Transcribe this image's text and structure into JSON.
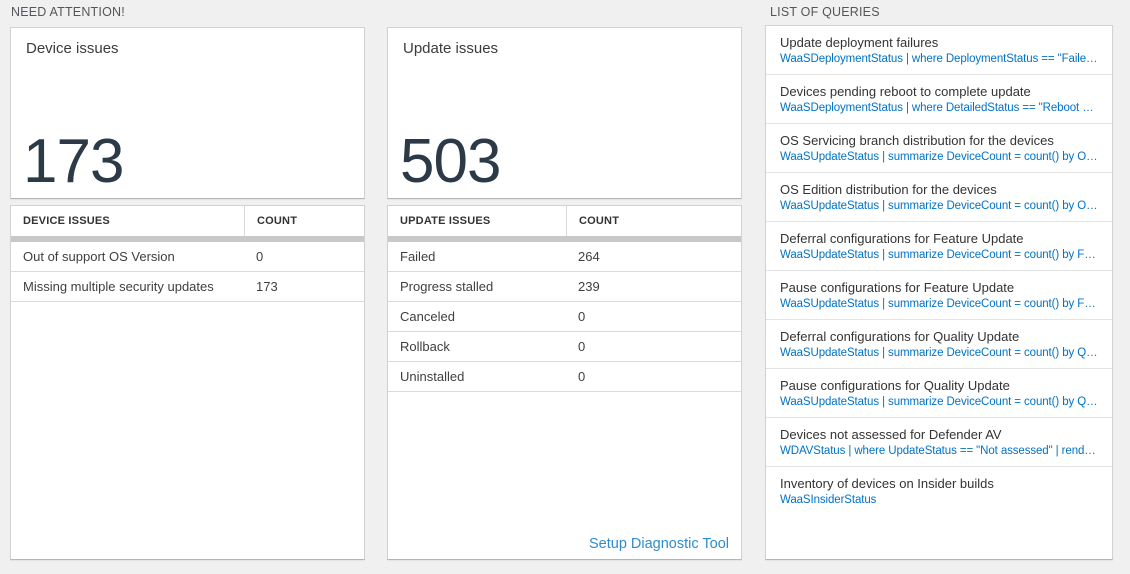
{
  "sections": {
    "need_attention_label": "NEED ATTENTION!",
    "list_of_queries_label": "LIST OF QUERIES"
  },
  "device_card": {
    "title": "Device issues",
    "big_number": "173",
    "table": {
      "headers": [
        "DEVICE ISSUES",
        "COUNT"
      ],
      "rows": [
        {
          "label": "Out of support OS Version",
          "count": "0"
        },
        {
          "label": "Missing multiple security updates",
          "count": "173"
        }
      ]
    }
  },
  "update_card": {
    "title": "Update issues",
    "big_number": "503",
    "table": {
      "headers": [
        "UPDATE ISSUES",
        "COUNT"
      ],
      "rows": [
        {
          "label": "Failed",
          "count": "264"
        },
        {
          "label": "Progress stalled",
          "count": "239"
        },
        {
          "label": "Canceled",
          "count": "0"
        },
        {
          "label": "Rollback",
          "count": "0"
        },
        {
          "label": "Uninstalled",
          "count": "0"
        }
      ]
    },
    "setup_link_label": "Setup Diagnostic Tool"
  },
  "queries": {
    "items": [
      {
        "title": "Update deployment failures",
        "query": "WaaSDeploymentStatus | where DeploymentStatus == \"Failed\" |..."
      },
      {
        "title": "Devices pending reboot to complete update",
        "query": "WaaSDeploymentStatus | where DetailedStatus == \"Reboot pend..."
      },
      {
        "title": "OS Servicing branch distribution for the devices",
        "query": "WaaSUpdateStatus | summarize DeviceCount = count() by OSSer..."
      },
      {
        "title": "OS Edition distribution for the devices",
        "query": "WaaSUpdateStatus | summarize DeviceCount = count() by OSEdit..."
      },
      {
        "title": "Deferral configurations for Feature Update",
        "query": "WaaSUpdateStatus | summarize DeviceCount = count() by Featur..."
      },
      {
        "title": "Pause configurations for Feature Update",
        "query": "WaaSUpdateStatus | summarize DeviceCount = count() by Featur..."
      },
      {
        "title": "Deferral configurations for Quality Update",
        "query": "WaaSUpdateStatus | summarize DeviceCount = count() by Qualit..."
      },
      {
        "title": "Pause configurations for Quality Update",
        "query": "WaaSUpdateStatus | summarize DeviceCount = count() by Qualit..."
      },
      {
        "title": "Devices not assessed for Defender AV",
        "query": "WDAVStatus | where UpdateStatus == \"Not assessed\" | render ta..."
      },
      {
        "title": "Inventory of devices on Insider builds",
        "query": "WaaSInsiderStatus"
      }
    ]
  },
  "colors": {
    "query_link_blue": "#0072c6",
    "setup_link_blue": "#2e8ccc",
    "big_number_dark": "#2c3a48",
    "accent_bar_gray": "#c8c8c8",
    "background_gray": "#f0f0f0"
  }
}
